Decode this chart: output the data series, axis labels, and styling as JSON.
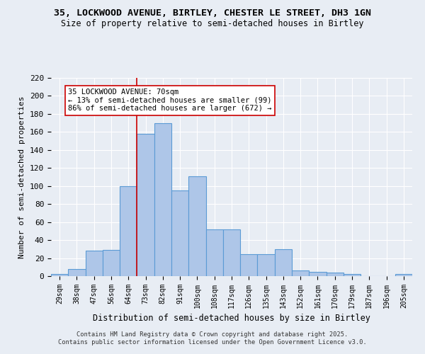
{
  "title": "35, LOCKWOOD AVENUE, BIRTLEY, CHESTER LE STREET, DH3 1GN",
  "subtitle": "Size of property relative to semi-detached houses in Birtley",
  "xlabel": "Distribution of semi-detached houses by size in Birtley",
  "ylabel": "Number of semi-detached properties",
  "categories": [
    "29sqm",
    "38sqm",
    "47sqm",
    "56sqm",
    "64sqm",
    "73sqm",
    "82sqm",
    "91sqm",
    "100sqm",
    "108sqm",
    "117sqm",
    "126sqm",
    "135sqm",
    "143sqm",
    "152sqm",
    "161sqm",
    "170sqm",
    "179sqm",
    "187sqm",
    "196sqm",
    "205sqm"
  ],
  "values": [
    2,
    8,
    28,
    29,
    100,
    158,
    170,
    95,
    111,
    52,
    52,
    24,
    24,
    30,
    6,
    5,
    4,
    2,
    0,
    0,
    2
  ],
  "bar_color": "#aec6e8",
  "bar_edge_color": "#5b9bd5",
  "background_color": "#e8edf4",
  "grid_color": "#ffffff",
  "vline_x": 4.5,
  "vline_color": "#cc0000",
  "annotation_title": "35 LOCKWOOD AVENUE: 70sqm",
  "annotation_line1": "← 13% of semi-detached houses are smaller (99)",
  "annotation_line2": "86% of semi-detached houses are larger (672) →",
  "annotation_box_color": "#ffffff",
  "annotation_box_edge_color": "#cc0000",
  "ylim": [
    0,
    220
  ],
  "yticks": [
    0,
    20,
    40,
    60,
    80,
    100,
    120,
    140,
    160,
    180,
    200,
    220
  ],
  "footer_line1": "Contains HM Land Registry data © Crown copyright and database right 2025.",
  "footer_line2": "Contains public sector information licensed under the Open Government Licence v3.0."
}
